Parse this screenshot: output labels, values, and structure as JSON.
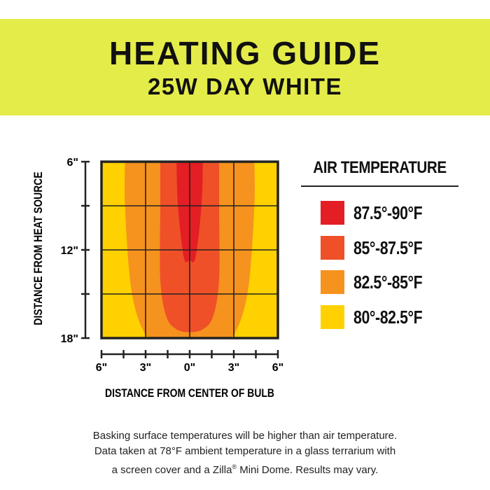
{
  "header": {
    "title": "HEATING GUIDE",
    "subtitle": "25W DAY WHITE",
    "background_color": "#e4ec4a"
  },
  "chart_data": {
    "type": "heatmap",
    "title": "HEATING GUIDE 25W DAY WHITE",
    "xlabel": "DISTANCE FROM CENTER OF BULB",
    "ylabel": "DISTANCE FROM HEAT SOURCE",
    "x_ticks": [
      "6\"",
      "3\"",
      "0\"",
      "3\"",
      "6\""
    ],
    "y_ticks": [
      "6\"",
      "12\"",
      "18\""
    ],
    "x_values": [
      -6,
      -3,
      0,
      3,
      6
    ],
    "y_values": [
      6,
      12,
      18
    ],
    "xlim": [
      -6,
      6
    ],
    "ylim": [
      6,
      18
    ],
    "grid": true,
    "zones": [
      {
        "range": "87.5°-90°F",
        "color": "#e31e24",
        "boundary": [
          [
            -0.9,
            6
          ],
          [
            -0.8,
            9
          ],
          [
            -0.4,
            12.5
          ],
          [
            0,
            12.7
          ],
          [
            0.4,
            12.5
          ],
          [
            0.8,
            9
          ],
          [
            0.9,
            6
          ]
        ]
      },
      {
        "range": "85°-87.5°F",
        "color": "#ef5028",
        "boundary": [
          [
            -2,
            6
          ],
          [
            -2,
            9
          ],
          [
            -2,
            14
          ],
          [
            -1.6,
            16.5
          ],
          [
            -0.9,
            17.4
          ],
          [
            0,
            17.6
          ],
          [
            0.9,
            17.4
          ],
          [
            1.6,
            16.5
          ],
          [
            2,
            14
          ],
          [
            2,
            9
          ],
          [
            2,
            6
          ]
        ]
      },
      {
        "range": "82.5°-85°F",
        "color": "#f6921e",
        "boundary": [
          [
            -4.4,
            6
          ],
          [
            -4.4,
            9
          ],
          [
            -4,
            14.5
          ],
          [
            -3.2,
            17.4
          ],
          [
            -2.2,
            18
          ],
          [
            2.2,
            18
          ],
          [
            3.2,
            17.4
          ],
          [
            4,
            14.5
          ],
          [
            4.4,
            9
          ],
          [
            4.4,
            6
          ]
        ]
      },
      {
        "range": "80°-82.5°F",
        "color": "#ffd100",
        "boundary": [
          [
            -6,
            6
          ],
          [
            6,
            6
          ],
          [
            6,
            18
          ],
          [
            -6,
            18
          ]
        ]
      }
    ]
  },
  "legend": {
    "title": "AIR TEMPERATURE",
    "items": [
      {
        "label": "87.5°-90°F",
        "color": "#e31e24"
      },
      {
        "label": "85°-87.5°F",
        "color": "#ef5028"
      },
      {
        "label": "82.5°-85°F",
        "color": "#f6921e"
      },
      {
        "label": "80°-82.5°F",
        "color": "#ffd100"
      }
    ]
  },
  "footnote": {
    "line1": "Basking surface temperatures will be higher than air temperature.",
    "line2": "Data taken at 78°F ambient temperature in a glass terrarium with",
    "line3_pre": "a screen cover and a Zilla",
    "line3_sup": "®",
    "line3_post": " Mini Dome. Results may vary."
  }
}
